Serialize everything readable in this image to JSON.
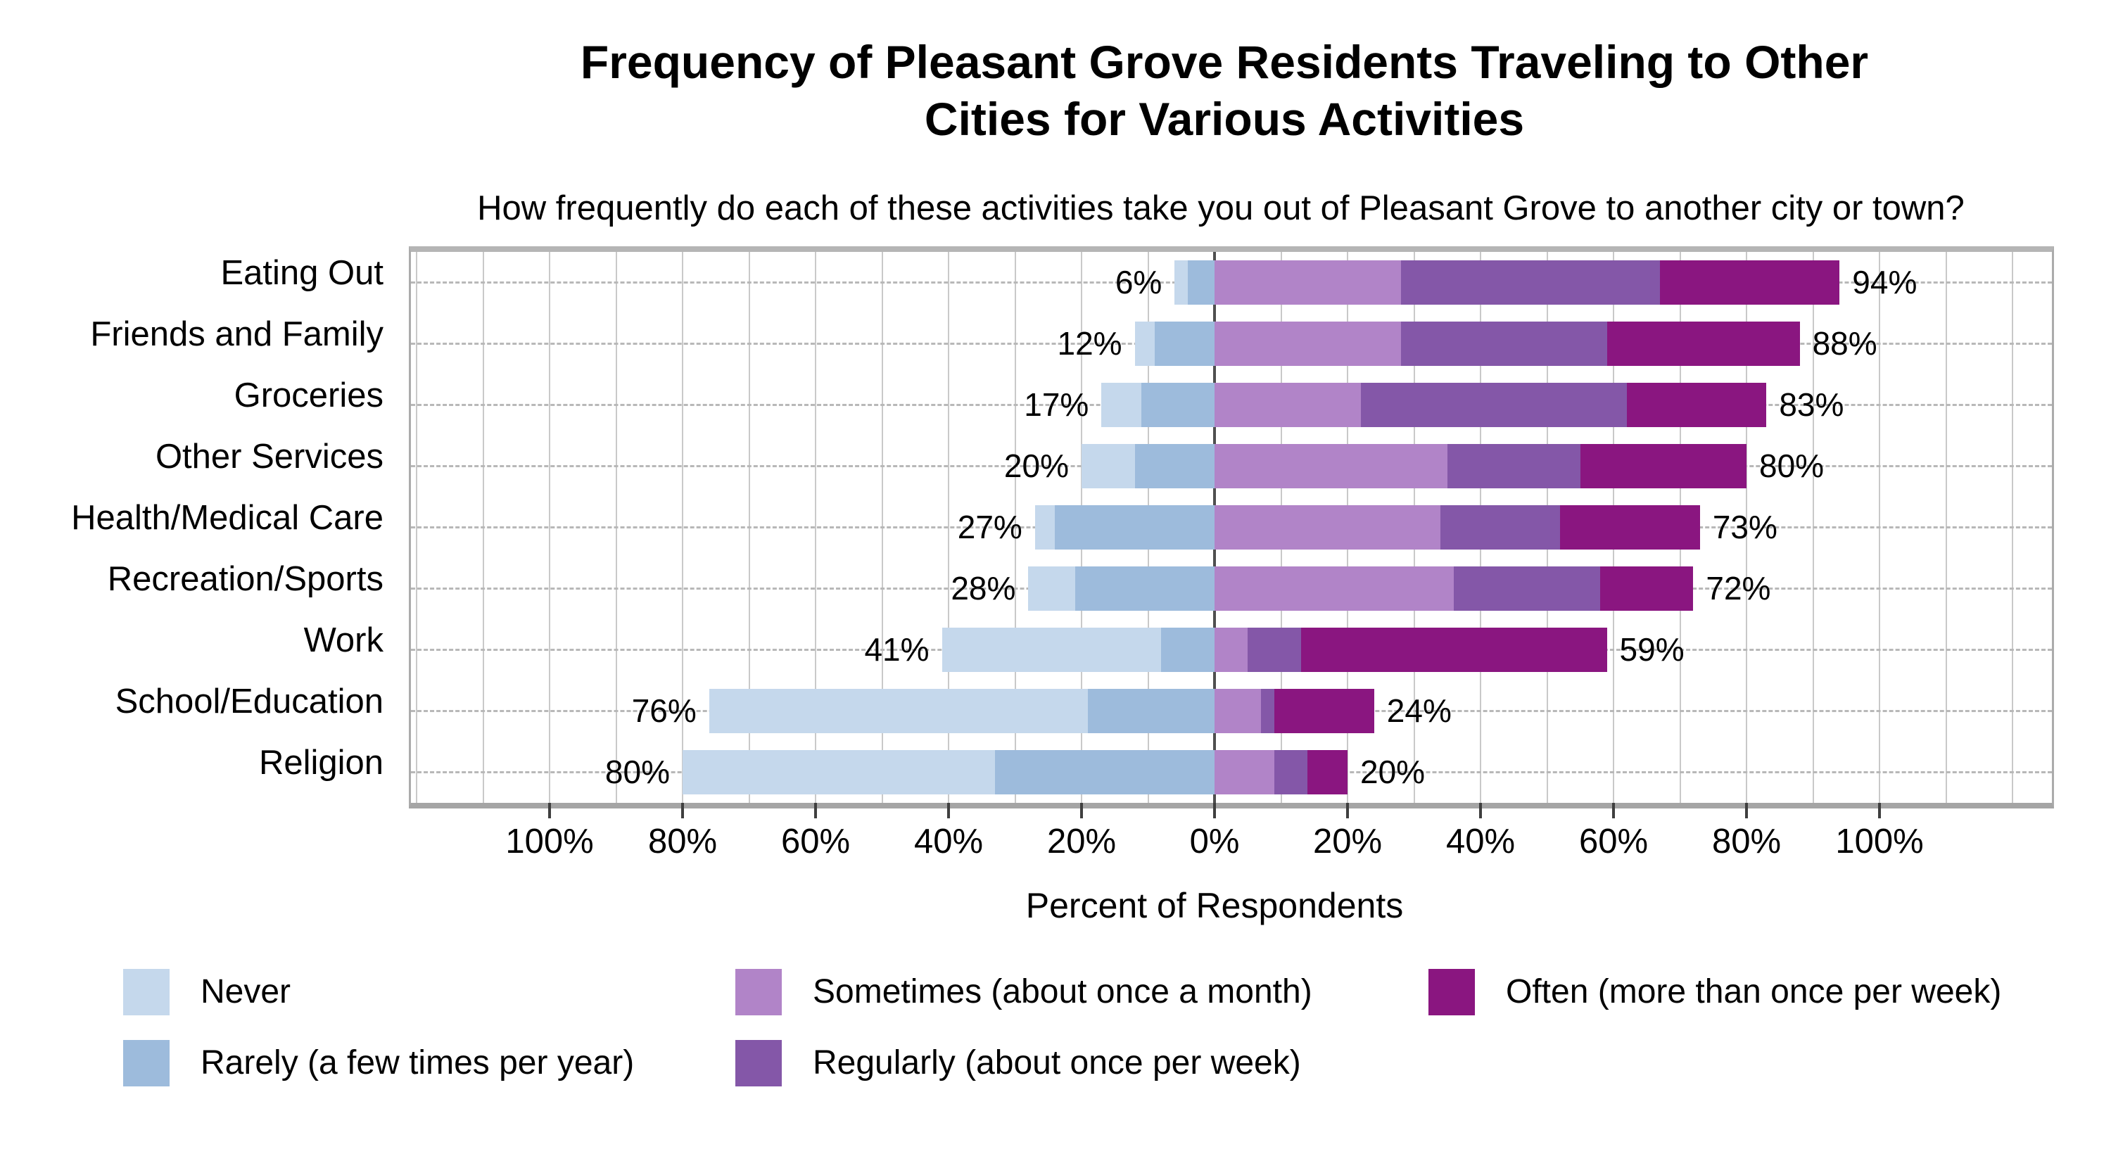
{
  "title": {
    "line1": "Frequency of Pleasant Grove Residents Traveling to Other",
    "line2": "Cities for Various Activities"
  },
  "subtitle": "How frequently do each of these activities take you out of Pleasant Grove to another city or town?",
  "chart_data": {
    "type": "bar",
    "variant": "diverging-stacked-horizontal",
    "title": "Frequency of Pleasant Grove Residents Traveling to Other Cities for Various Activities",
    "subtitle": "How frequently do each of these activities take you out of Pleasant Grove to another city or town?",
    "xlabel": "Percent of Respondents",
    "categories": [
      "Eating Out",
      "Friends and Family",
      "Groceries",
      "Other Services",
      "Health/Medical Care",
      "Recreation/Sports",
      "Work",
      "School/Education",
      "Religion"
    ],
    "series": [
      {
        "name": "Never",
        "side": "left",
        "color": "#c5d8ec",
        "values": [
          2,
          3,
          6,
          8,
          3,
          7,
          33,
          57,
          47
        ]
      },
      {
        "name": "Rarely (a few times per year)",
        "side": "left",
        "color": "#9dbbdc",
        "values": [
          4,
          9,
          11,
          12,
          24,
          21,
          8,
          19,
          33
        ]
      },
      {
        "name": "Sometimes (about once a month)",
        "side": "right",
        "color": "#b184c8",
        "values": [
          28,
          28,
          22,
          35,
          34,
          36,
          5,
          7,
          9
        ]
      },
      {
        "name": "Regularly (about once per week)",
        "side": "right",
        "color": "#8457a8",
        "values": [
          39,
          31,
          40,
          20,
          18,
          22,
          8,
          2,
          5
        ]
      },
      {
        "name": "Often (more than once per week)",
        "side": "right",
        "color": "#8a1680",
        "values": [
          27,
          29,
          21,
          25,
          21,
          14,
          46,
          15,
          6
        ]
      }
    ],
    "left_totals_labels": [
      "6%",
      "12%",
      "17%",
      "20%",
      "27%",
      "28%",
      "41%",
      "76%",
      "80%"
    ],
    "right_totals_labels": [
      "94%",
      "88%",
      "83%",
      "80%",
      "73%",
      "72%",
      "59%",
      "24%",
      "20%"
    ],
    "x_ticks": [
      {
        "value": -100,
        "label": "100%"
      },
      {
        "value": -80,
        "label": "80%"
      },
      {
        "value": -60,
        "label": "60%"
      },
      {
        "value": -40,
        "label": "40%"
      },
      {
        "value": -20,
        "label": "20%"
      },
      {
        "value": 0,
        "label": "0%"
      },
      {
        "value": 20,
        "label": "20%"
      },
      {
        "value": 40,
        "label": "40%"
      },
      {
        "value": 60,
        "label": "60%"
      },
      {
        "value": 80,
        "label": "80%"
      },
      {
        "value": 100,
        "label": "100%"
      }
    ],
    "xlim": [
      -121,
      126
    ],
    "grid": {
      "vertical_minor_step": 10,
      "vertical_minor_color": "#c9c9c9",
      "zero_line_color": "#4f4f4f",
      "row_guides": "dashed"
    },
    "legend_position": "bottom"
  },
  "legend": {
    "items": [
      {
        "label": "Never",
        "color": "#c5d8ec",
        "col": 0,
        "row": 0
      },
      {
        "label": "Rarely (a few times per year)",
        "color": "#9dbbdc",
        "col": 0,
        "row": 1
      },
      {
        "label": "Sometimes (about once a month)",
        "color": "#b184c8",
        "col": 1,
        "row": 0
      },
      {
        "label": "Regularly (about once per week)",
        "color": "#8457a8",
        "col": 1,
        "row": 1
      },
      {
        "label": "Often (more than once per week)",
        "color": "#8a1680",
        "col": 2,
        "row": 0
      }
    ]
  }
}
